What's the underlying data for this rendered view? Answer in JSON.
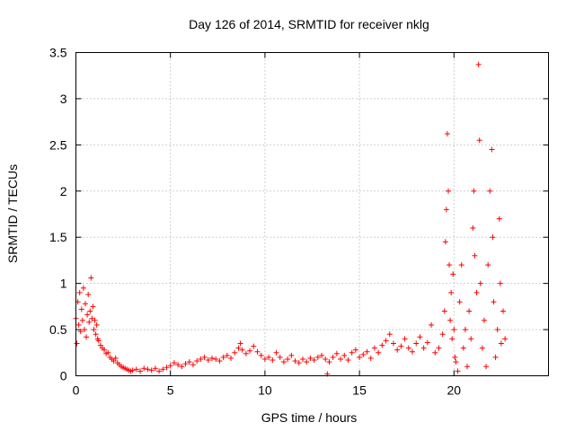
{
  "chart_data": {
    "type": "scatter",
    "title": "Day 126 of 2014, SRMTID for receiver nklg",
    "xlabel": "GPS time / hours",
    "ylabel": "SRMTID / TECUs",
    "xlim": [
      0,
      25
    ],
    "ylim": [
      0,
      3.5
    ],
    "xticks": [
      0,
      5,
      10,
      15,
      20
    ],
    "xtick_labels": [
      "0",
      "5",
      "10",
      "15",
      "20"
    ],
    "yticks": [
      0,
      0.5,
      1,
      1.5,
      2,
      2.5,
      3,
      3.5
    ],
    "ytick_labels": [
      "0",
      "0.5",
      "1",
      "1.5",
      "2",
      "2.5",
      "3",
      "3.5"
    ],
    "grid": true,
    "marker": "+",
    "series": [
      {
        "name": "SRMTID",
        "color": "#ff0000",
        "points": [
          [
            0.0,
            0.62
          ],
          [
            0.05,
            0.35
          ],
          [
            0.1,
            0.8
          ],
          [
            0.15,
            0.55
          ],
          [
            0.2,
            0.9
          ],
          [
            0.25,
            0.48
          ],
          [
            0.3,
            0.72
          ],
          [
            0.35,
            0.6
          ],
          [
            0.4,
            0.95
          ],
          [
            0.45,
            0.5
          ],
          [
            0.5,
            0.78
          ],
          [
            0.55,
            0.42
          ],
          [
            0.6,
            0.66
          ],
          [
            0.65,
            0.88
          ],
          [
            0.7,
            0.58
          ],
          [
            0.75,
            0.7
          ],
          [
            0.8,
            1.06
          ],
          [
            0.85,
            0.62
          ],
          [
            0.9,
            0.75
          ],
          [
            0.95,
            0.5
          ],
          [
            1.0,
            0.6
          ],
          [
            1.05,
            0.45
          ],
          [
            1.1,
            0.55
          ],
          [
            1.15,
            0.4
          ],
          [
            1.2,
            0.38
          ],
          [
            1.3,
            0.33
          ],
          [
            1.4,
            0.3
          ],
          [
            1.5,
            0.28
          ],
          [
            1.6,
            0.24
          ],
          [
            1.7,
            0.25
          ],
          [
            1.8,
            0.2
          ],
          [
            1.9,
            0.18
          ],
          [
            2.0,
            0.16
          ],
          [
            2.1,
            0.19
          ],
          [
            2.2,
            0.14
          ],
          [
            2.3,
            0.12
          ],
          [
            2.4,
            0.1
          ],
          [
            2.5,
            0.09
          ],
          [
            2.6,
            0.08
          ],
          [
            2.7,
            0.07
          ],
          [
            2.8,
            0.06
          ],
          [
            2.9,
            0.05
          ],
          [
            3.0,
            0.06
          ],
          [
            3.2,
            0.07
          ],
          [
            3.4,
            0.05
          ],
          [
            3.6,
            0.08
          ],
          [
            3.8,
            0.07
          ],
          [
            4.0,
            0.06
          ],
          [
            4.2,
            0.08
          ],
          [
            4.4,
            0.05
          ],
          [
            4.6,
            0.07
          ],
          [
            4.8,
            0.09
          ],
          [
            5.0,
            0.11
          ],
          [
            5.2,
            0.14
          ],
          [
            5.4,
            0.12
          ],
          [
            5.6,
            0.1
          ],
          [
            5.8,
            0.13
          ],
          [
            6.0,
            0.15
          ],
          [
            6.2,
            0.12
          ],
          [
            6.4,
            0.16
          ],
          [
            6.6,
            0.18
          ],
          [
            6.8,
            0.2
          ],
          [
            7.0,
            0.17
          ],
          [
            7.2,
            0.19
          ],
          [
            7.4,
            0.18
          ],
          [
            7.6,
            0.16
          ],
          [
            7.8,
            0.2
          ],
          [
            8.0,
            0.22
          ],
          [
            8.2,
            0.19
          ],
          [
            8.4,
            0.25
          ],
          [
            8.6,
            0.3
          ],
          [
            8.7,
            0.35
          ],
          [
            8.8,
            0.28
          ],
          [
            9.0,
            0.24
          ],
          [
            9.2,
            0.27
          ],
          [
            9.4,
            0.32
          ],
          [
            9.6,
            0.26
          ],
          [
            9.8,
            0.22
          ],
          [
            10.0,
            0.18
          ],
          [
            10.2,
            0.2
          ],
          [
            10.4,
            0.17
          ],
          [
            10.6,
            0.25
          ],
          [
            10.8,
            0.2
          ],
          [
            11.0,
            0.15
          ],
          [
            11.2,
            0.18
          ],
          [
            11.4,
            0.22
          ],
          [
            11.6,
            0.16
          ],
          [
            11.8,
            0.14
          ],
          [
            12.0,
            0.18
          ],
          [
            12.2,
            0.15
          ],
          [
            12.4,
            0.19
          ],
          [
            12.6,
            0.17
          ],
          [
            12.8,
            0.2
          ],
          [
            13.0,
            0.22
          ],
          [
            13.2,
            0.18
          ],
          [
            13.3,
            0.02
          ],
          [
            13.4,
            0.15
          ],
          [
            13.6,
            0.2
          ],
          [
            13.8,
            0.24
          ],
          [
            14.0,
            0.18
          ],
          [
            14.2,
            0.22
          ],
          [
            14.4,
            0.17
          ],
          [
            14.6,
            0.25
          ],
          [
            14.8,
            0.28
          ],
          [
            15.0,
            0.2
          ],
          [
            15.2,
            0.23
          ],
          [
            15.4,
            0.26
          ],
          [
            15.6,
            0.19
          ],
          [
            15.8,
            0.3
          ],
          [
            16.0,
            0.25
          ],
          [
            16.2,
            0.33
          ],
          [
            16.4,
            0.38
          ],
          [
            16.6,
            0.45
          ],
          [
            16.8,
            0.35
          ],
          [
            17.0,
            0.28
          ],
          [
            17.2,
            0.32
          ],
          [
            17.4,
            0.4
          ],
          [
            17.6,
            0.3
          ],
          [
            17.8,
            0.26
          ],
          [
            18.0,
            0.35
          ],
          [
            18.2,
            0.42
          ],
          [
            18.4,
            0.3
          ],
          [
            18.6,
            0.36
          ],
          [
            18.8,
            0.55
          ],
          [
            19.0,
            0.25
          ],
          [
            19.2,
            0.3
          ],
          [
            19.4,
            0.45
          ],
          [
            19.5,
            0.7
          ],
          [
            19.55,
            1.45
          ],
          [
            19.6,
            1.8
          ],
          [
            19.65,
            2.62
          ],
          [
            19.7,
            2.0
          ],
          [
            19.75,
            1.2
          ],
          [
            19.8,
            0.6
          ],
          [
            19.85,
            0.9
          ],
          [
            19.9,
            0.4
          ],
          [
            19.95,
            1.1
          ],
          [
            20.0,
            0.5
          ],
          [
            20.05,
            0.2
          ],
          [
            20.1,
            0.15
          ],
          [
            20.2,
            0.05
          ],
          [
            20.3,
            0.8
          ],
          [
            20.4,
            1.2
          ],
          [
            20.5,
            0.3
          ],
          [
            20.6,
            0.5
          ],
          [
            20.7,
            0.1
          ],
          [
            20.8,
            0.7
          ],
          [
            20.9,
            0.4
          ],
          [
            21.0,
            1.6
          ],
          [
            21.05,
            2.0
          ],
          [
            21.1,
            1.3
          ],
          [
            21.2,
            0.9
          ],
          [
            21.3,
            3.37
          ],
          [
            21.35,
            2.55
          ],
          [
            21.4,
            1.0
          ],
          [
            21.5,
            0.3
          ],
          [
            21.6,
            0.6
          ],
          [
            21.7,
            0.1
          ],
          [
            21.8,
            1.2
          ],
          [
            21.9,
            2.0
          ],
          [
            22.0,
            2.45
          ],
          [
            22.05,
            1.5
          ],
          [
            22.1,
            0.8
          ],
          [
            22.2,
            0.2
          ],
          [
            22.3,
            0.5
          ],
          [
            22.4,
            1.7
          ],
          [
            22.45,
            1.0
          ],
          [
            22.5,
            0.35
          ],
          [
            22.6,
            0.7
          ],
          [
            22.7,
            0.4
          ]
        ]
      }
    ]
  }
}
